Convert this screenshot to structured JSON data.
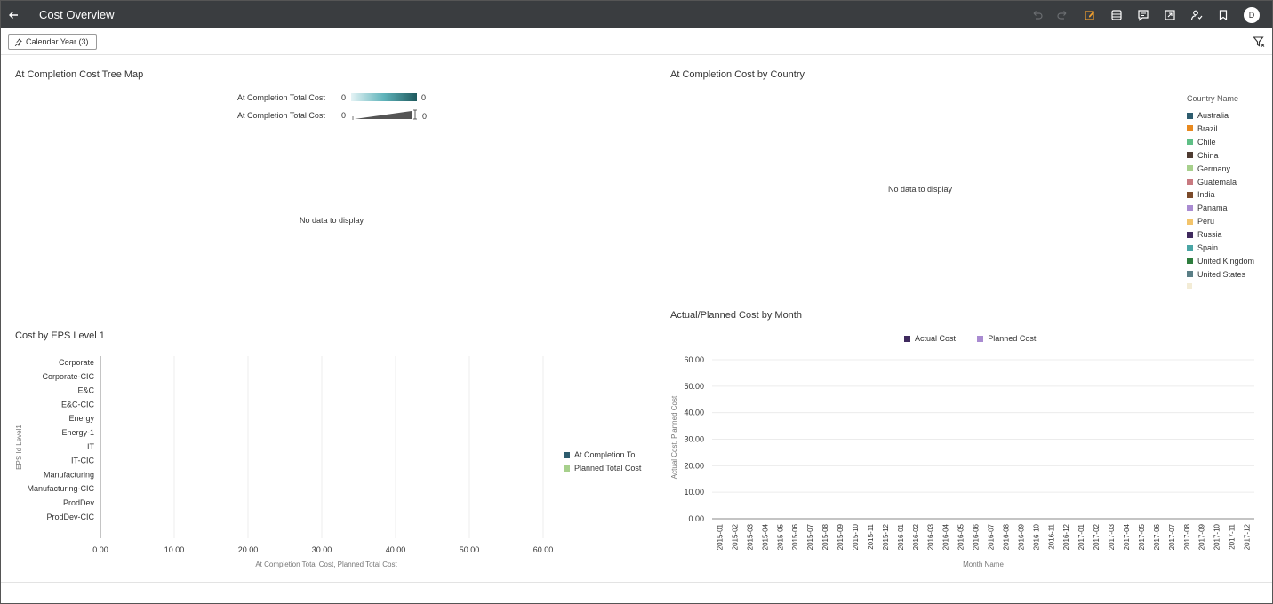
{
  "header": {
    "title": "Cost Overview",
    "avatar_letter": "D"
  },
  "filter": {
    "chip_label": "Calendar Year (3)"
  },
  "treemap": {
    "title": "At Completion Cost Tree Map",
    "legend_color_label": "At Completion Total Cost",
    "legend_color_min": "0",
    "legend_color_max": "0",
    "legend_size_label": "At Completion Total Cost",
    "legend_size_min": "0",
    "legend_size_max": "0",
    "no_data": "No data to display"
  },
  "country": {
    "title": "At Completion Cost by Country",
    "no_data": "No data to display",
    "legend_title": "Country Name",
    "legend_items": [
      {
        "name": "Australia",
        "color": "#2e5c6e"
      },
      {
        "name": "Brazil",
        "color": "#e8891e"
      },
      {
        "name": "Chile",
        "color": "#5fbf86"
      },
      {
        "name": "China",
        "color": "#4e3b31"
      },
      {
        "name": "Germany",
        "color": "#a7d08c"
      },
      {
        "name": "Guatemala",
        "color": "#c87a80"
      },
      {
        "name": "India",
        "color": "#7b4a2a"
      },
      {
        "name": "Panama",
        "color": "#a98bd1"
      },
      {
        "name": "Peru",
        "color": "#f3c46b"
      },
      {
        "name": "Russia",
        "color": "#3f2a5e"
      },
      {
        "name": "Spain",
        "color": "#4aa5a5"
      },
      {
        "name": "United Kingdom",
        "color": "#2e7d3e"
      },
      {
        "name": "United States",
        "color": "#5a7e86"
      }
    ]
  },
  "eps": {
    "title": "Cost by EPS Level 1",
    "legend_items": [
      {
        "name": "At Completion To...",
        "color": "#2e5c6e"
      },
      {
        "name": "Planned Total Cost",
        "color": "#a7d08c"
      }
    ]
  },
  "monthly": {
    "title": "Actual/Planned Cost by Month",
    "legend_items": [
      {
        "name": "Actual Cost",
        "color": "#3f2a5e"
      },
      {
        "name": "Planned Cost",
        "color": "#a98bd1"
      }
    ]
  },
  "chart_data": [
    {
      "type": "bar",
      "title": "Cost by EPS Level 1",
      "orientation": "horizontal",
      "categories": [
        "Corporate",
        "Corporate-CIC",
        "E&C",
        "E&C-CIC",
        "Energy",
        "Energy-1",
        "IT",
        "IT-CIC",
        "Manufacturing",
        "Manufacturing-CIC",
        "ProdDev",
        "ProdDev-CIC"
      ],
      "series": [
        {
          "name": "At Completion To...",
          "values": [
            0,
            0,
            0,
            0,
            0,
            0,
            0,
            0,
            0,
            0,
            0,
            0
          ]
        },
        {
          "name": "Planned Total Cost",
          "values": [
            0,
            0,
            0,
            0,
            0,
            0,
            0,
            0,
            0,
            0,
            0,
            0
          ]
        }
      ],
      "xlabel": "At Completion Total Cost, Planned Total Cost",
      "ylabel": "EPS Id Level1",
      "xlim": [
        0,
        60
      ],
      "xticks": [
        "0.00",
        "10.00",
        "20.00",
        "30.00",
        "40.00",
        "50.00",
        "60.00"
      ],
      "grid": true,
      "legend": "right"
    },
    {
      "type": "line",
      "title": "Actual/Planned Cost by Month",
      "x": [
        "2015-01",
        "2015-02",
        "2015-03",
        "2015-04",
        "2015-05",
        "2015-06",
        "2015-07",
        "2015-08",
        "2015-09",
        "2015-10",
        "2015-11",
        "2015-12",
        "2016-01",
        "2016-02",
        "2016-03",
        "2016-04",
        "2016-05",
        "2016-06",
        "2016-07",
        "2016-08",
        "2016-09",
        "2016-10",
        "2016-11",
        "2016-12",
        "2017-01",
        "2017-02",
        "2017-03",
        "2017-04",
        "2017-05",
        "2017-06",
        "2017-07",
        "2017-08",
        "2017-09",
        "2017-10",
        "2017-11",
        "2017-12"
      ],
      "series": [
        {
          "name": "Actual Cost",
          "values": [
            0,
            0,
            0,
            0,
            0,
            0,
            0,
            0,
            0,
            0,
            0,
            0,
            0,
            0,
            0,
            0,
            0,
            0,
            0,
            0,
            0,
            0,
            0,
            0,
            0,
            0,
            0,
            0,
            0,
            0,
            0,
            0,
            0,
            0,
            0,
            0
          ]
        },
        {
          "name": "Planned Cost",
          "values": [
            0,
            0,
            0,
            0,
            0,
            0,
            0,
            0,
            0,
            0,
            0,
            0,
            0,
            0,
            0,
            0,
            0,
            0,
            0,
            0,
            0,
            0,
            0,
            0,
            0,
            0,
            0,
            0,
            0,
            0,
            0,
            0,
            0,
            0,
            0,
            0
          ]
        }
      ],
      "xlabel": "Month Name",
      "ylabel": "Actual Cost, Planned Cost",
      "ylim": [
        0,
        60
      ],
      "yticks": [
        "0.00",
        "10.00",
        "20.00",
        "30.00",
        "40.00",
        "50.00",
        "60.00"
      ],
      "grid": true,
      "legend": "top"
    }
  ]
}
